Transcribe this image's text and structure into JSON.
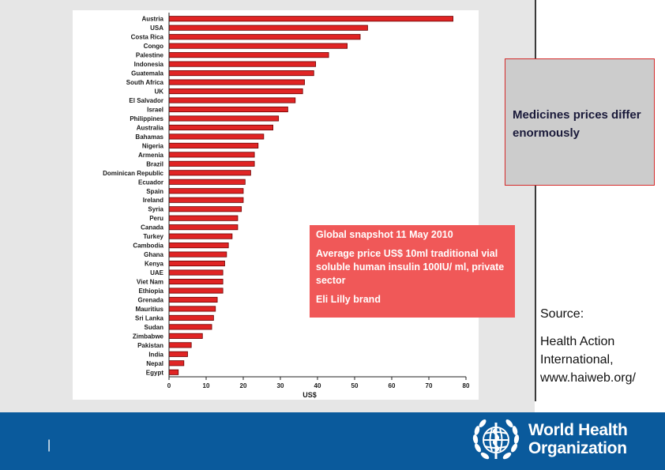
{
  "callout": {
    "text": "Medicines prices differ enormously"
  },
  "snapshot": {
    "title": "Global snapshot 11 May 2010",
    "description": "Average price US$ 10ml traditional vial soluble human insulin 100IU/ ml, private sector",
    "brand": "Eli Lilly brand"
  },
  "source": {
    "label": "Source:",
    "text": "Health Action International, www.haiweb.org/"
  },
  "footer": {
    "page_number": "|",
    "org_line1": "World Health",
    "org_line2": "Organization"
  },
  "colors": {
    "bar_fill": "#e02424",
    "bar_stroke": "#6a0000",
    "footer_blue": "#0a5a9c",
    "snapshot_red": "#f05858"
  },
  "chart_data": {
    "type": "bar",
    "orientation": "horizontal",
    "categories": [
      "Austria",
      "USA",
      "Costa Rica",
      "Congo",
      "Palestine",
      "Indonesia",
      "Guatemala",
      "South Africa",
      "UK",
      "El Salvador",
      "Israel",
      "Philippines",
      "Australia",
      "Bahamas",
      "Nigeria",
      "Armenia",
      "Brazil",
      "Dominican Republic",
      "Ecuador",
      "Spain",
      "Ireland",
      "Syria",
      "Peru",
      "Canada",
      "Turkey",
      "Cambodia",
      "Ghana",
      "Kenya",
      "UAE",
      "Viet Nam",
      "Ethiopia",
      "Grenada",
      "Mauritius",
      "Sri Lanka",
      "Sudan",
      "Zimbabwe",
      "Pakistan",
      "India",
      "Nepal",
      "Egypt"
    ],
    "values": [
      76.5,
      53.5,
      51.5,
      48,
      43,
      39.5,
      39,
      36.5,
      36,
      34,
      32,
      29.5,
      28,
      25.5,
      24,
      23,
      23,
      22,
      20.5,
      20,
      20,
      19.5,
      18.5,
      18.5,
      17,
      16,
      15.5,
      15,
      14.5,
      14.5,
      14.5,
      13,
      12.5,
      12,
      11.5,
      9,
      6,
      5,
      4,
      2.5
    ],
    "xlabel": "US$",
    "xlim": [
      0,
      80
    ],
    "xticks": [
      0,
      10,
      20,
      30,
      40,
      50,
      60,
      70,
      80
    ],
    "grid": false,
    "legend": "none"
  }
}
